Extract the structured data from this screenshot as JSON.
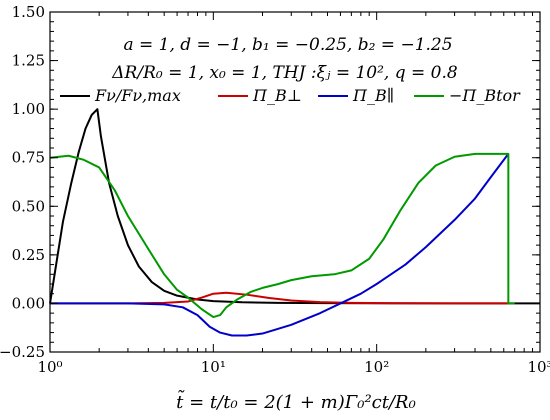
{
  "chart_data": {
    "type": "line",
    "title": "",
    "xlabel": "t̃ = t/t₀ = 2(1 + m)Γ₀²ct/R₀",
    "ylabel": "",
    "xscale": "log",
    "xlim": [
      1,
      1000
    ],
    "ylim": [
      -0.25,
      1.5
    ],
    "grid": false,
    "legend_position": "upper",
    "annotations": [
      "a = 1,  d = −1,  b₁ = −0.25,  b₂ = −1.25",
      "ΔR/R₀ = 1,  x₀ = 1,  THJ :ξⱼ = 10²,  q = 0.8"
    ],
    "x_ticks": [
      {
        "value": 1,
        "label": "10⁰"
      },
      {
        "value": 10,
        "label": "10¹"
      },
      {
        "value": 100,
        "label": "10²"
      },
      {
        "value": 1000,
        "label": "10³"
      }
    ],
    "y_ticks": [
      {
        "value": -0.25,
        "label": "−0.25"
      },
      {
        "value": 0,
        "label": "0.00"
      },
      {
        "value": 0.25,
        "label": "0.25"
      },
      {
        "value": 0.5,
        "label": "0.50"
      },
      {
        "value": 0.75,
        "label": "0.75"
      },
      {
        "value": 1.0,
        "label": "1.00"
      },
      {
        "value": 1.25,
        "label": "1.25"
      },
      {
        "value": 1.5,
        "label": "1.50"
      }
    ],
    "series": [
      {
        "name": "Fν/Fν,max",
        "color": "#000000",
        "points": [
          [
            1,
            0
          ],
          [
            1.1,
            0.22
          ],
          [
            1.2,
            0.42
          ],
          [
            1.35,
            0.62
          ],
          [
            1.5,
            0.78
          ],
          [
            1.65,
            0.9
          ],
          [
            1.8,
            0.97
          ],
          [
            1.95,
            1.0
          ],
          [
            2.05,
            0.86
          ],
          [
            2.3,
            0.62
          ],
          [
            2.6,
            0.45
          ],
          [
            3,
            0.3
          ],
          [
            3.5,
            0.19
          ],
          [
            4.2,
            0.11
          ],
          [
            5,
            0.065
          ],
          [
            6,
            0.04
          ],
          [
            8,
            0.02
          ],
          [
            10,
            0.012
          ],
          [
            15,
            0.006
          ],
          [
            25,
            0.003
          ],
          [
            50,
            0.0015
          ],
          [
            100,
            0.0007
          ],
          [
            300,
            0.0002
          ],
          [
            1000,
            0
          ]
        ]
      },
      {
        "name": "Π_B⊥",
        "color": "#cc0000",
        "points": [
          [
            1,
            0
          ],
          [
            3,
            0
          ],
          [
            5,
            0.003
          ],
          [
            7,
            0.01
          ],
          [
            8.5,
            0.03
          ],
          [
            10,
            0.05
          ],
          [
            12,
            0.055
          ],
          [
            16,
            0.045
          ],
          [
            22,
            0.028
          ],
          [
            30,
            0.015
          ],
          [
            45,
            0.007
          ],
          [
            70,
            0.003
          ],
          [
            120,
            0.001
          ],
          [
            300,
            0
          ],
          [
            640,
            0
          ]
        ]
      },
      {
        "name": "Π_B∥",
        "color": "#0000cc",
        "points": [
          [
            1,
            0
          ],
          [
            3,
            0
          ],
          [
            5,
            -0.005
          ],
          [
            6.5,
            -0.02
          ],
          [
            8,
            -0.06
          ],
          [
            9.5,
            -0.12
          ],
          [
            11,
            -0.15
          ],
          [
            13,
            -0.165
          ],
          [
            16,
            -0.165
          ],
          [
            20,
            -0.155
          ],
          [
            30,
            -0.11
          ],
          [
            45,
            -0.05
          ],
          [
            60,
            0
          ],
          [
            80,
            0.05
          ],
          [
            100,
            0.1
          ],
          [
            150,
            0.2
          ],
          [
            200,
            0.29
          ],
          [
            300,
            0.43
          ],
          [
            400,
            0.54
          ],
          [
            500,
            0.65
          ],
          [
            640,
            0.77
          ]
        ]
      },
      {
        "name": "−Π_Btor",
        "color": "#009900",
        "points": [
          [
            1,
            0.75
          ],
          [
            1.3,
            0.76
          ],
          [
            1.6,
            0.74
          ],
          [
            2,
            0.7
          ],
          [
            2.5,
            0.58
          ],
          [
            3,
            0.45
          ],
          [
            4,
            0.28
          ],
          [
            5,
            0.15
          ],
          [
            6,
            0.07
          ],
          [
            7,
            0.03
          ],
          [
            8.5,
            -0.03
          ],
          [
            10,
            -0.07
          ],
          [
            11,
            -0.06
          ],
          [
            12,
            -0.02
          ],
          [
            14,
            0.02
          ],
          [
            17,
            0.06
          ],
          [
            20,
            0.08
          ],
          [
            25,
            0.1
          ],
          [
            30,
            0.12
          ],
          [
            40,
            0.14
          ],
          [
            55,
            0.15
          ],
          [
            70,
            0.17
          ],
          [
            90,
            0.23
          ],
          [
            110,
            0.33
          ],
          [
            140,
            0.48
          ],
          [
            180,
            0.62
          ],
          [
            230,
            0.71
          ],
          [
            300,
            0.755
          ],
          [
            400,
            0.77
          ],
          [
            640,
            0.77
          ],
          [
            640,
            0
          ],
          [
            700,
            0
          ]
        ]
      }
    ]
  }
}
